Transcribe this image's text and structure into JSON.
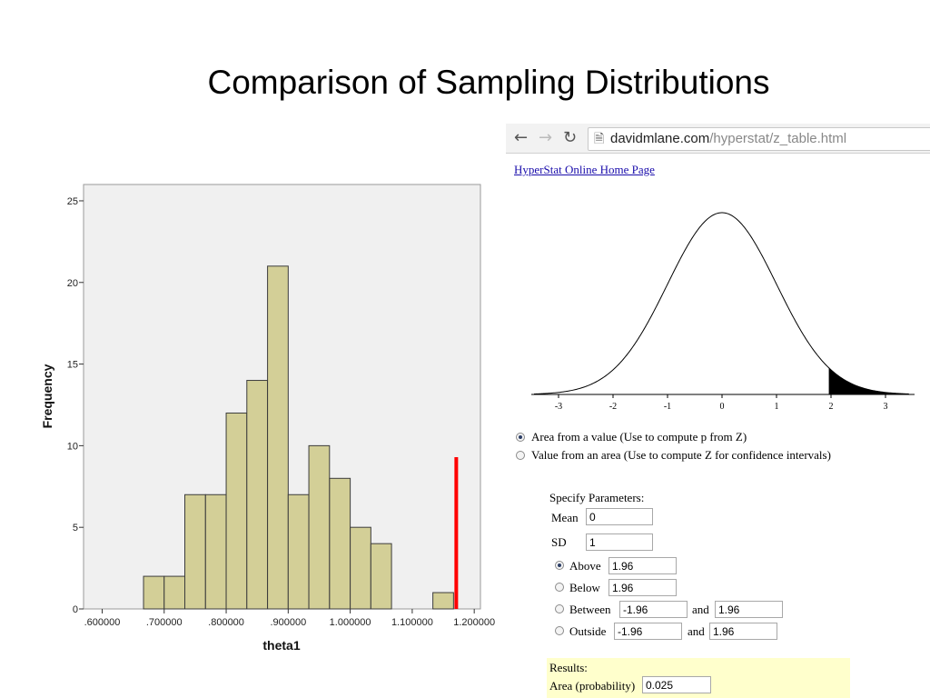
{
  "slide": {
    "title": "Comparison of Sampling Distributions"
  },
  "histogram": {
    "ylabel": "Frequency",
    "xlabel": "theta1",
    "y_ticks": [
      "0",
      "5",
      "10",
      "15",
      "20",
      "25"
    ],
    "x_ticks": [
      ".600000",
      ".700000",
      ".800000",
      ".900000",
      "1.000000",
      "1.100000",
      "1.200000"
    ],
    "colors": {
      "bar": "#d3cf97",
      "plot_bg": "#f0f0f0",
      "marker": "#ff0000"
    }
  },
  "chart_data": {
    "type": "bar",
    "title": "",
    "xlabel": "theta1",
    "ylabel": "Frequency",
    "bin_width": 0.0333,
    "bin_starts": [
      0.6667,
      0.7,
      0.7333,
      0.7667,
      0.8,
      0.8333,
      0.8667,
      0.9,
      0.9333,
      0.9667,
      1.0,
      1.0333,
      1.0667,
      1.1,
      1.1333
    ],
    "values": [
      2,
      2,
      7,
      7,
      12,
      14,
      21,
      7,
      10,
      8,
      5,
      4,
      0,
      0,
      1
    ],
    "xlim": [
      0.57,
      1.21
    ],
    "ylim": [
      0,
      26
    ],
    "marker_line": {
      "x": 1.171,
      "y_top": 9.3,
      "color": "#ff0000"
    }
  },
  "browser": {
    "back_icon": "arrow-left-icon",
    "forward_icon": "arrow-right-icon",
    "reload_icon": "reload-icon",
    "page_icon": "document-icon",
    "url_host": "davidmlane.com",
    "url_path": "/hyperstat/z_table.html"
  },
  "page": {
    "home_link": "HyperStat Online Home Page",
    "curve_ticks": [
      "-3",
      "-2",
      "-1",
      "0",
      "1",
      "2",
      "3"
    ],
    "curve_shade_from": 1.96,
    "mode_options": [
      {
        "label": "Area from a value (Use to compute p from Z)",
        "checked": true
      },
      {
        "label": "Value from an area (Use to compute Z for confidence intervals)",
        "checked": false
      }
    ],
    "params": {
      "heading": "Specify Parameters:",
      "mean_label": "Mean",
      "mean_value": "0",
      "sd_label": "SD",
      "sd_value": "1",
      "options": [
        {
          "label": "Above",
          "value": "1.96",
          "checked": true
        },
        {
          "label": "Below",
          "value": "1.96",
          "checked": false
        },
        {
          "label": "Between",
          "value": "-1.96",
          "and_label": "and",
          "value2": "1.96",
          "checked": false
        },
        {
          "label": "Outside",
          "value": "-1.96",
          "and_label": "and",
          "value2": "1.96",
          "checked": false
        }
      ]
    },
    "results": {
      "heading": "Results:",
      "area_label": "Area (probability)",
      "area_value": "0.025"
    }
  }
}
